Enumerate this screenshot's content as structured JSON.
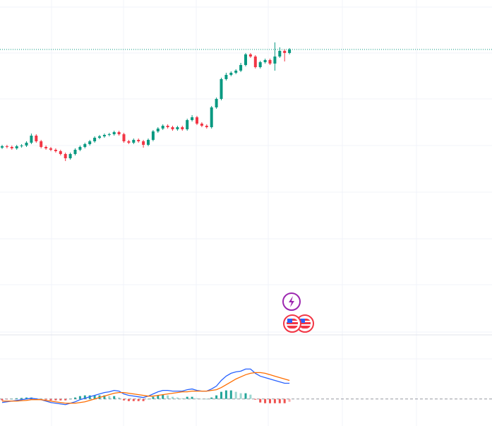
{
  "chart_data": [
    {
      "type": "candlestick",
      "up_color": "#089981",
      "down_color": "#f23645",
      "ylim": [
        0,
        472
      ],
      "last_price_line": true,
      "open": [
        263,
        265,
        264,
        262,
        265,
        266,
        270,
        280,
        272,
        264,
        262,
        260,
        258,
        254,
        248,
        254,
        260,
        264,
        268,
        272,
        277,
        279,
        281,
        282,
        285,
        282,
        272,
        270,
        274,
        272,
        267,
        274,
        286,
        290,
        294,
        292,
        289,
        292,
        289,
        302,
        306,
        297,
        294,
        292,
        320,
        332,
        360,
        366,
        369,
        372,
        380,
        395,
        392,
        377,
        384,
        387,
        382,
        392,
        400,
        397
      ],
      "high": [
        267,
        267,
        266,
        267,
        268,
        272,
        283,
        282,
        274,
        266,
        264,
        262,
        260,
        256,
        256,
        262,
        266,
        270,
        274,
        279,
        281,
        283,
        284,
        287,
        287,
        284,
        274,
        276,
        276,
        274,
        276,
        288,
        292,
        296,
        296,
        294,
        294,
        294,
        304,
        309,
        308,
        299,
        296,
        322,
        334,
        362,
        369,
        371,
        374,
        383,
        397,
        397,
        394,
        386,
        389,
        389,
        412,
        405,
        402,
        404
      ],
      "low": [
        261,
        262,
        260,
        260,
        263,
        264,
        268,
        270,
        262,
        260,
        258,
        256,
        252,
        244,
        246,
        252,
        258,
        262,
        266,
        270,
        275,
        277,
        279,
        280,
        280,
        270,
        268,
        268,
        270,
        263,
        265,
        272,
        284,
        288,
        290,
        287,
        287,
        287,
        287,
        300,
        295,
        292,
        290,
        290,
        318,
        330,
        358,
        364,
        367,
        370,
        378,
        390,
        375,
        375,
        382,
        380,
        372,
        390,
        385,
        395
      ],
      "close": [
        265,
        264,
        262,
        265,
        266,
        270,
        280,
        272,
        264,
        262,
        260,
        258,
        254,
        248,
        254,
        260,
        264,
        268,
        272,
        277,
        279,
        281,
        282,
        285,
        282,
        272,
        270,
        274,
        272,
        267,
        274,
        286,
        290,
        294,
        292,
        289,
        292,
        289,
        302,
        306,
        297,
        294,
        292,
        320,
        332,
        360,
        366,
        369,
        372,
        380,
        395,
        392,
        377,
        384,
        387,
        382,
        392,
        400,
        397,
        402
      ]
    },
    {
      "type": "macd",
      "ylim": [
        -19,
        44
      ],
      "hist_up_color": "#26a69a",
      "hist_down_color": "#ef5350",
      "series": [
        {
          "color": "#2962ff",
          "values": [
            -2.5,
            -2,
            -1.5,
            -1,
            -0.5,
            0,
            0.5,
            0,
            -0.5,
            -1.5,
            -2.5,
            -3,
            -3.5,
            -4,
            -3,
            -2,
            -0.5,
            0.5,
            1.5,
            2.5,
            3.5,
            4.5,
            5,
            6,
            5.5,
            3.5,
            2.5,
            2,
            1.5,
            1,
            2,
            3.5,
            5,
            6,
            6,
            5.5,
            5.5,
            5.5,
            6.5,
            7,
            6,
            5.5,
            5.5,
            7,
            9,
            13,
            16,
            18,
            19,
            19.5,
            21,
            21,
            18,
            16,
            15,
            14,
            13,
            12,
            11,
            11
          ]
        },
        {
          "color": "#ff6d00",
          "values": [
            -1.5,
            -1.5,
            -1.5,
            -1.5,
            -1.2,
            -1,
            -0.5,
            -0.5,
            -0.5,
            -1,
            -1.5,
            -2,
            -2.5,
            -3,
            -3,
            -3,
            -2.5,
            -2,
            -1,
            0,
            1,
            2,
            3,
            4,
            4.5,
            4.5,
            4,
            3.5,
            3,
            2.5,
            2,
            2,
            2.5,
            3,
            3.5,
            4,
            4.5,
            5,
            5,
            5.5,
            5.5,
            5.5,
            5.5,
            6,
            6.5,
            8,
            10,
            12,
            14,
            15.5,
            17,
            18,
            18.5,
            18.5,
            18,
            17,
            16,
            15,
            14,
            13
          ]
        }
      ],
      "histogram": [
        -1,
        -0.5,
        0,
        0.5,
        0.7,
        1,
        1,
        0.5,
        0,
        -0.5,
        -1,
        -1,
        -1,
        -1,
        0,
        1,
        2,
        2.5,
        2.5,
        2.5,
        2.5,
        2.5,
        2,
        2,
        1,
        -1,
        -1.5,
        -1.5,
        -1.5,
        -1.5,
        0,
        1.5,
        2.5,
        3,
        2.5,
        1.5,
        1,
        0.5,
        1.5,
        1.5,
        0.5,
        0,
        0,
        1,
        2.5,
        5,
        6,
        6,
        5,
        4,
        4,
        3,
        -0.5,
        -2.5,
        -3,
        -3,
        -3,
        -3,
        -3,
        -2
      ]
    }
  ]
}
